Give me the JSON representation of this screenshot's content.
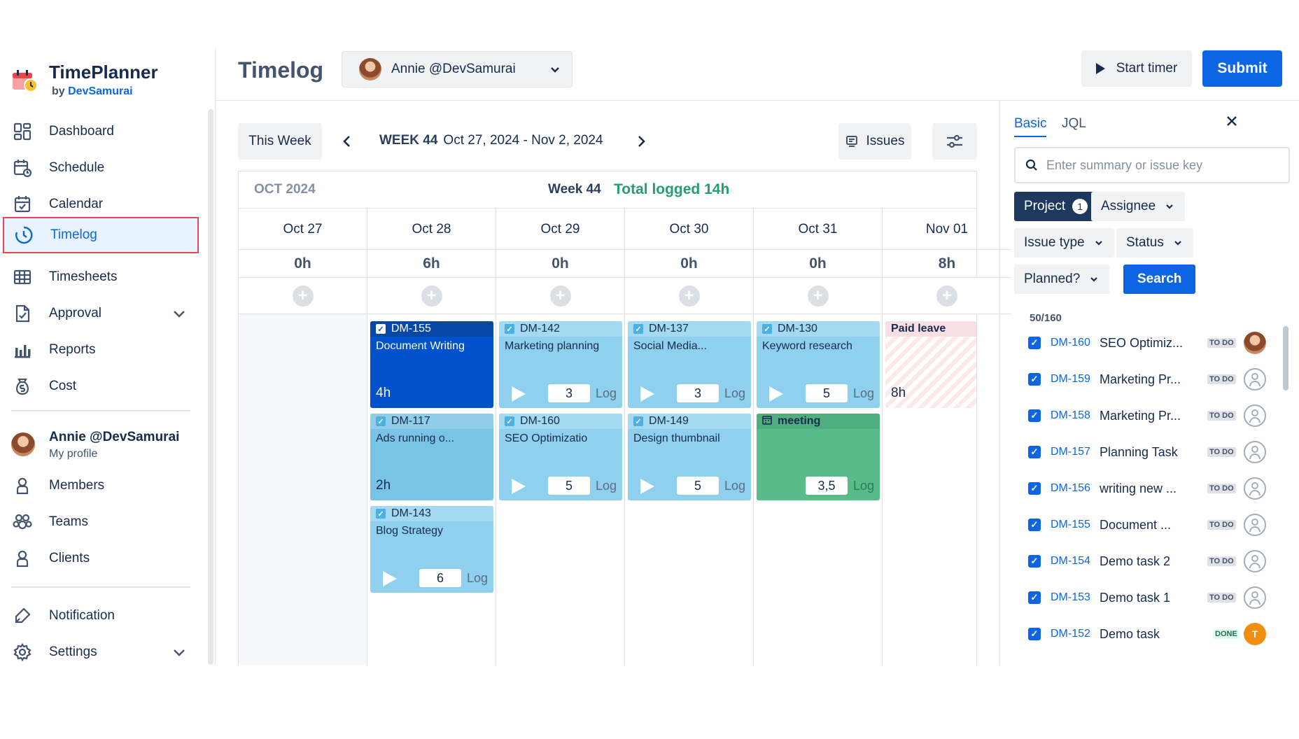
{
  "brand": {
    "title": "TimePlanner",
    "sub_prefix": "by",
    "sub_name": "DevSamurai"
  },
  "sidebar": {
    "items": [
      {
        "label": "Dashboard",
        "icon": "dashboard-icon"
      },
      {
        "label": "Schedule",
        "icon": "schedule-icon"
      },
      {
        "label": "Calendar",
        "icon": "calendar-icon"
      },
      {
        "label": "Timelog",
        "icon": "timelog-icon",
        "active": true
      },
      {
        "label": "Timesheets",
        "icon": "timesheets-icon"
      },
      {
        "label": "Approval",
        "icon": "approval-icon",
        "expandable": true
      },
      {
        "label": "Reports",
        "icon": "reports-icon"
      },
      {
        "label": "Cost",
        "icon": "cost-icon"
      }
    ],
    "profile": {
      "name": "Annie @DevSamurai",
      "sub": "My profile"
    },
    "items2": [
      {
        "label": "Members",
        "icon": "members-icon"
      },
      {
        "label": "Teams",
        "icon": "teams-icon"
      },
      {
        "label": "Clients",
        "icon": "clients-icon"
      }
    ],
    "items3": [
      {
        "label": "Notification",
        "icon": "notification-icon"
      },
      {
        "label": "Settings",
        "icon": "settings-icon",
        "expandable": true
      }
    ]
  },
  "header": {
    "title": "Timelog",
    "user_select": "Annie @DevSamurai",
    "start_timer": "Start timer",
    "submit": "Submit"
  },
  "toolbar": {
    "this_week": "This Week",
    "week_num": "WEEK 44",
    "week_range": "Oct 27, 2024 - Nov 2, 2024",
    "issues": "Issues"
  },
  "grid": {
    "month": "OCT 2024",
    "week": "Week 44",
    "total": "Total logged 14h",
    "days": [
      {
        "date": "Oct 27",
        "hours": "0h"
      },
      {
        "date": "Oct 28",
        "hours": "6h"
      },
      {
        "date": "Oct 29",
        "hours": "0h"
      },
      {
        "date": "Oct 30",
        "hours": "0h"
      },
      {
        "date": "Oct 31",
        "hours": "0h"
      },
      {
        "date": "Nov 01",
        "hours": "8h"
      }
    ]
  },
  "cards": {
    "c1": {
      "key": "DM-155",
      "title": "Document Writing",
      "hours": "4h"
    },
    "c2": {
      "key": "DM-117",
      "title": "Ads running o...",
      "hours": "2h"
    },
    "c3": {
      "key": "DM-143",
      "title": "Blog Strategy",
      "value": "6",
      "log": "Log"
    },
    "c4": {
      "key": "DM-142",
      "title": "Marketing planning",
      "value": "3",
      "log": "Log"
    },
    "c5": {
      "key": "DM-160",
      "title": "SEO Optimizatio",
      "value": "5",
      "log": "Log"
    },
    "c6": {
      "key": "DM-137",
      "title": "Social Media...",
      "value": "3",
      "log": "Log"
    },
    "c7": {
      "key": "DM-149",
      "title": "Design thumbnail",
      "value": "5",
      "log": "Log"
    },
    "c8": {
      "key": "DM-130",
      "title": "Keyword research",
      "value": "5",
      "log": "Log"
    },
    "c9": {
      "key": "meeting",
      "value": "3,5",
      "log": "Log"
    },
    "c10": {
      "key": "Paid leave",
      "hours": "8h"
    }
  },
  "panel": {
    "tab_basic": "Basic",
    "tab_jql": "JQL",
    "search_placeholder": "Enter summary or issue key",
    "filters": {
      "project": "Project",
      "project_count": "1",
      "assignee": "Assignee",
      "issue_type": "Issue type",
      "status": "Status",
      "planned": "Planned?",
      "search": "Search"
    },
    "count": "50/160",
    "issues": [
      {
        "key": "DM-160",
        "summary": "SEO Optimiz...",
        "status": "TO DO",
        "assignee": "photo"
      },
      {
        "key": "DM-159",
        "summary": "Marketing Pr...",
        "status": "TO DO",
        "assignee": "none"
      },
      {
        "key": "DM-158",
        "summary": "Marketing Pr...",
        "status": "TO DO",
        "assignee": "none"
      },
      {
        "key": "DM-157",
        "summary": "Planning Task",
        "status": "TO DO",
        "assignee": "none"
      },
      {
        "key": "DM-156",
        "summary": "writing new ...",
        "status": "TO DO",
        "assignee": "none"
      },
      {
        "key": "DM-155",
        "summary": "Document ...",
        "status": "TO DO",
        "assignee": "none"
      },
      {
        "key": "DM-154",
        "summary": "Demo task 2",
        "status": "TO DO",
        "assignee": "none"
      },
      {
        "key": "DM-153",
        "summary": "Demo task 1",
        "status": "TO DO",
        "assignee": "none"
      },
      {
        "key": "DM-152",
        "summary": "Demo task",
        "status": "DONE",
        "assignee": "T"
      }
    ]
  },
  "colors": {
    "primary": "#0c66e4",
    "success": "#22a06b",
    "active_border": "#e5484d"
  }
}
